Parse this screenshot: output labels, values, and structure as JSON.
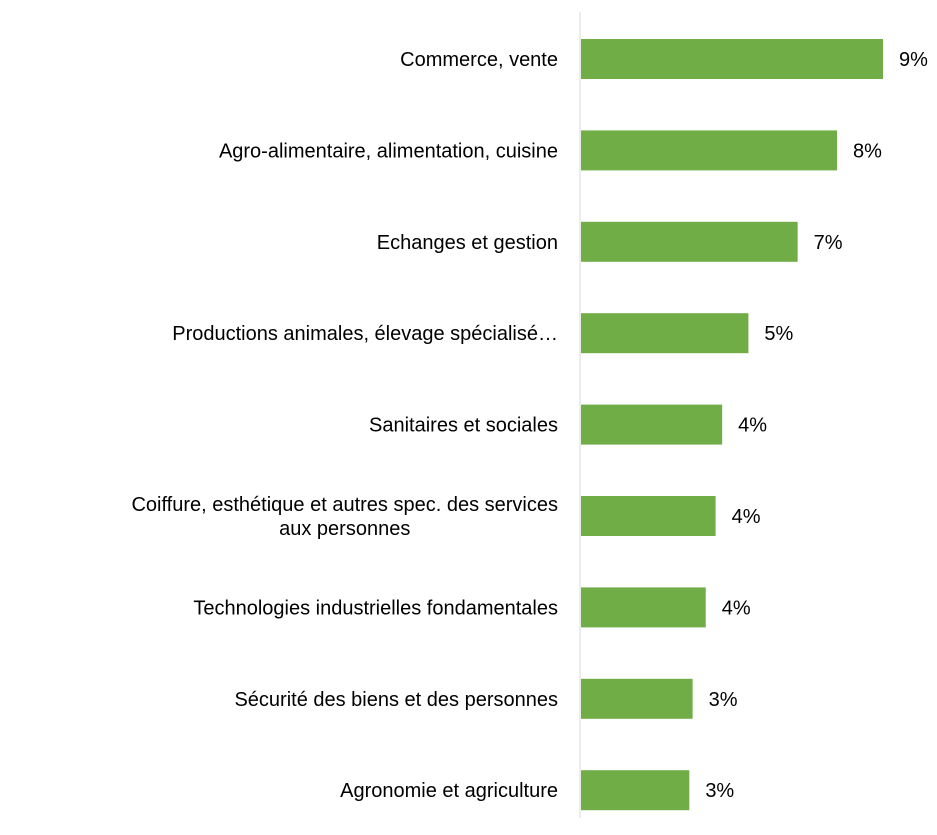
{
  "chart_data": {
    "type": "bar",
    "orientation": "horizontal",
    "title": "",
    "xlabel": "",
    "ylabel": "",
    "xlim": [
      0,
      9.2
    ],
    "grid": false,
    "legend": "none",
    "categories": [
      [
        "Commerce, vente"
      ],
      [
        "Agro-alimentaire, alimentation, cuisine"
      ],
      [
        "Echanges et gestion"
      ],
      [
        "Productions animales, élevage spécialisé…"
      ],
      [
        "Sanitaires et sociales"
      ],
      [
        "Coiffure, esthétique et autres spec. des services",
        "aux personnes"
      ],
      [
        "Technologies industrielles fondamentales"
      ],
      [
        "Sécurité des biens et des personnes"
      ],
      [
        "Agronomie et agriculture"
      ]
    ],
    "values": [
      9.2,
      7.8,
      6.6,
      5.1,
      4.3,
      4.1,
      3.8,
      3.4,
      3.3
    ],
    "value_labels": [
      "9%",
      "8%",
      "7%",
      "5%",
      "4%",
      "4%",
      "4%",
      "3%",
      "3%"
    ],
    "colors": {
      "bar": "#70ad47",
      "axis": "#d9d9d9",
      "text": "#000000"
    }
  }
}
